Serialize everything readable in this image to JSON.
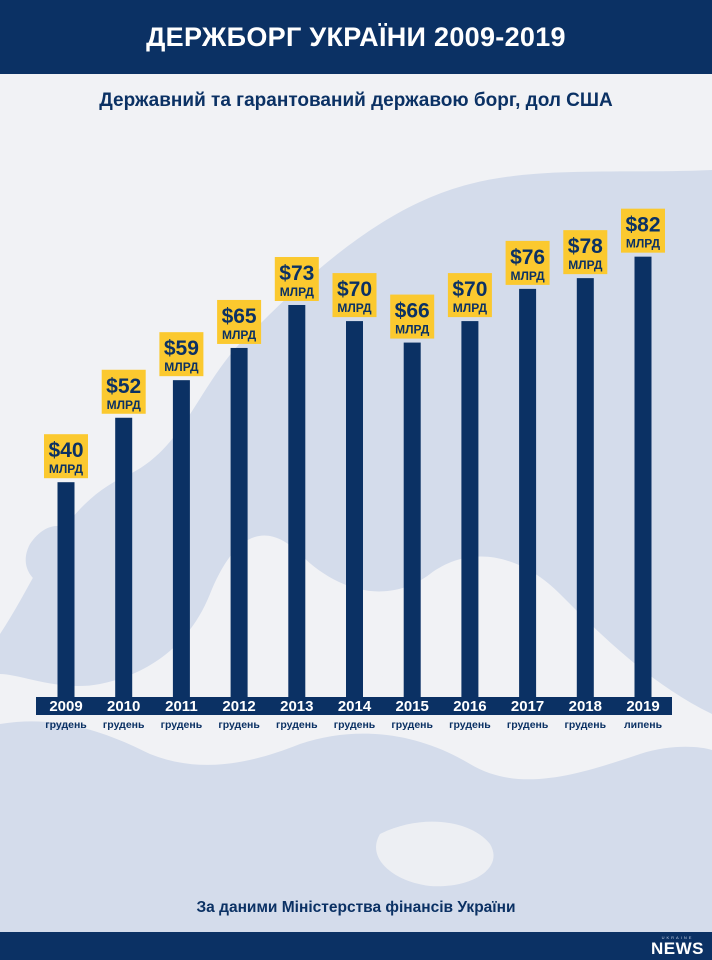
{
  "header": {
    "title": "ДЕРЖБОРГ УКРАЇНИ 2009-2019"
  },
  "colors": {
    "navy": "#0b3164",
    "label_yellow": "#fbc92f",
    "map": "#d4dceb",
    "background": "#f1f2f5"
  },
  "chart_data": {
    "type": "bar",
    "title": "ДЕРЖБОРГ УКРАЇНИ 2009-2019",
    "subtitle": "Державний та гарантований державою борг, дол США",
    "categories": [
      "2009",
      "2010",
      "2011",
      "2012",
      "2013",
      "2014",
      "2015",
      "2016",
      "2017",
      "2018",
      "2019"
    ],
    "periods": [
      "грудень",
      "грудень",
      "грудень",
      "грудень",
      "грудень",
      "грудень",
      "грудень",
      "грудень",
      "грудень",
      "грудень",
      "липень"
    ],
    "values": [
      40,
      52,
      59,
      65,
      73,
      70,
      66,
      70,
      76,
      78,
      82
    ],
    "value_labels": [
      "$40",
      "$52",
      "$59",
      "$65",
      "$73",
      "$70",
      "$66",
      "$70",
      "$76",
      "$78",
      "$82"
    ],
    "unit_label": "МЛРД",
    "ylim": [
      0,
      90
    ],
    "grid": false,
    "legend": "none"
  },
  "source": "За даними Міністерства фінансів України",
  "logo": {
    "small": "UKRAINE",
    "main": "NEWS"
  }
}
